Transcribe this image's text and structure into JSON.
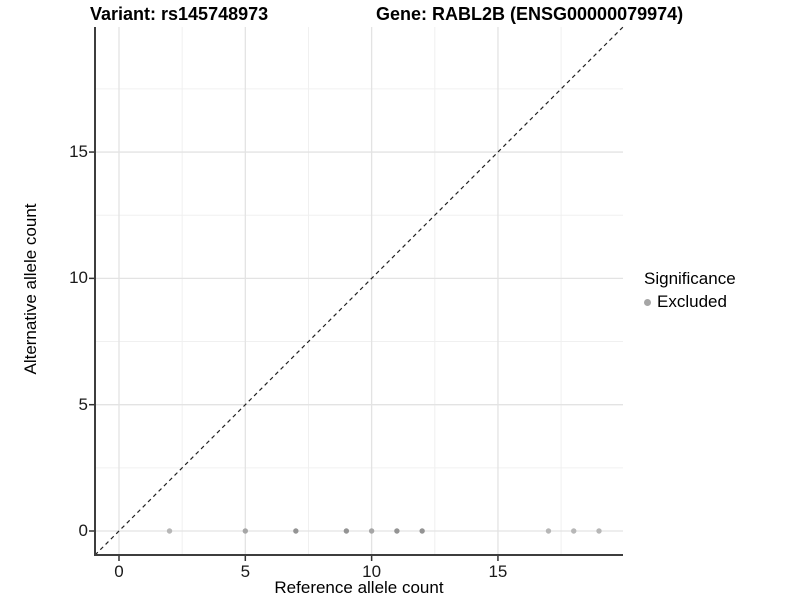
{
  "chart_data": {
    "type": "scatter",
    "title_left": "Variant: rs145748973",
    "title_right": "Gene: RABL2B (ENSG00000079974)",
    "xlabel": "Reference allele count",
    "ylabel": "Alternative allele count",
    "x_ticks": [
      0,
      5,
      10,
      15
    ],
    "y_ticks": [
      0,
      5,
      10,
      15
    ],
    "minor_gridlines": [
      2.5,
      7.5,
      12.5,
      17.5
    ],
    "xlim": [
      -0.95,
      19.95
    ],
    "ylim": [
      -0.95,
      19.95
    ],
    "grid": "major+minor",
    "reference_line": {
      "type": "identity y=x",
      "style": "dashed"
    },
    "legend": {
      "title": "Significance",
      "position": "right",
      "items": [
        {
          "label": "Excluded",
          "color": "#a6a6a6"
        }
      ]
    },
    "series": [
      {
        "name": "Excluded",
        "points": [
          {
            "x": 2,
            "y": 0,
            "shade": "light"
          },
          {
            "x": 5,
            "y": 0,
            "shade": "medium"
          },
          {
            "x": 7,
            "y": 0,
            "shade": "dark"
          },
          {
            "x": 9,
            "y": 0,
            "shade": "dark"
          },
          {
            "x": 10,
            "y": 0,
            "shade": "medium"
          },
          {
            "x": 11,
            "y": 0,
            "shade": "dark"
          },
          {
            "x": 12,
            "y": 0,
            "shade": "dark"
          },
          {
            "x": 17,
            "y": 0,
            "shade": "light"
          },
          {
            "x": 18,
            "y": 0,
            "shade": "light"
          },
          {
            "x": 19,
            "y": 0,
            "shade": "light"
          }
        ]
      }
    ],
    "colors": {
      "point_light": "#b7b7b7",
      "point_medium": "#a6a6a6",
      "point_dark": "#949494",
      "grid_major": "#e3e3e3",
      "grid_minor": "#f0f0f0",
      "axis_line": "#3d3d3d",
      "tick_mark": "#333333",
      "dashed_line": "#222222"
    }
  }
}
